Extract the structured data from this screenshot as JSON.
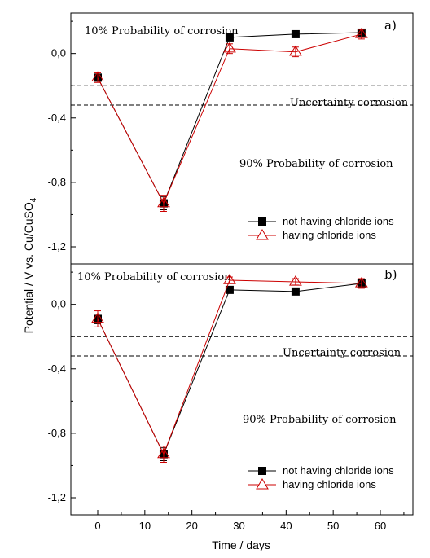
{
  "chart_data": [
    {
      "type": "line",
      "panel_label": "a)",
      "x": [
        0,
        14,
        28,
        42,
        56
      ],
      "xlim": [
        -5,
        65
      ],
      "ylim": [
        -1.3,
        0.25
      ],
      "y_ticks": [
        0.0,
        -0.4,
        -0.8,
        -1.2
      ],
      "y_tick_labels": [
        "0,0",
        "-0,4",
        "-0,8",
        "-1,2"
      ],
      "series": [
        {
          "name": "not having chloride ions",
          "marker": "square",
          "color": "#000000",
          "values": [
            -0.15,
            -0.93,
            0.1,
            0.12,
            0.13
          ],
          "errors": [
            0.02,
            0.04,
            0.015,
            0.015,
            0.015
          ]
        },
        {
          "name": "having chloride ions",
          "marker": "triangle",
          "color": "#cc0000",
          "values": [
            -0.15,
            -0.93,
            0.03,
            0.01,
            0.12
          ],
          "errors": [
            0.03,
            0.05,
            0.03,
            0.03,
            0.03
          ]
        }
      ],
      "thresholds": [
        -0.2,
        -0.32
      ],
      "annotations": {
        "top": "10% Probability of corrosion",
        "middle": "Uncertainty corrosion",
        "bottom": "90% Probability of corrosion"
      },
      "legend_position": "lower-right"
    },
    {
      "type": "line",
      "panel_label": "b)",
      "x": [
        0,
        14,
        28,
        42,
        56
      ],
      "xlim": [
        -5,
        65
      ],
      "x_ticks": [
        0,
        10,
        20,
        30,
        40,
        50,
        60
      ],
      "x_tick_labels": [
        "0",
        "10",
        "20",
        "30",
        "40",
        "50",
        "60"
      ],
      "ylim": [
        -1.3,
        0.25
      ],
      "y_ticks": [
        0.0,
        -0.4,
        -0.8,
        -1.2
      ],
      "y_tick_labels": [
        "0,0",
        "-0,4",
        "-0,8",
        "-1,2"
      ],
      "series": [
        {
          "name": "not having chloride ions",
          "marker": "square",
          "color": "#000000",
          "values": [
            -0.09,
            -0.93,
            0.09,
            0.08,
            0.13
          ],
          "errors": [
            0.03,
            0.04,
            0.015,
            0.015,
            0.015
          ]
        },
        {
          "name": "having chloride ions",
          "marker": "triangle",
          "color": "#cc0000",
          "values": [
            -0.09,
            -0.93,
            0.15,
            0.14,
            0.13
          ],
          "errors": [
            0.05,
            0.05,
            0.02,
            0.02,
            0.03
          ]
        }
      ],
      "thresholds": [
        -0.2,
        -0.32
      ],
      "annotations": {
        "top": "10% Probability of corrosion",
        "middle": "Uncertainty corrosion",
        "bottom": "90% Probability of corrosion"
      },
      "legend_position": "lower-right"
    }
  ],
  "axes": {
    "xlabel": "Time / days",
    "ylabel_main": "Potential / V vs. Cu/CuSO",
    "ylabel_sub": "4"
  }
}
